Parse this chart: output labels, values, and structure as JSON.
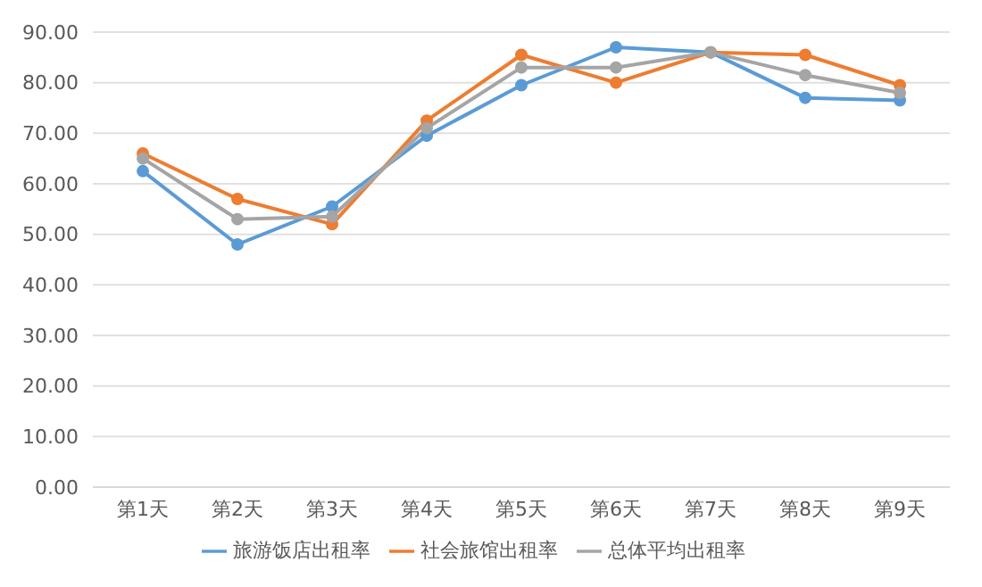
{
  "chart_data": {
    "type": "line",
    "categories": [
      "第1天",
      "第2天",
      "第3天",
      "第4天",
      "第5天",
      "第6天",
      "第7天",
      "第8天",
      "第9天"
    ],
    "series": [
      {
        "name": "旅游饭店出租率",
        "color": "#5b9bd5",
        "values": [
          62.5,
          48,
          55.5,
          69.5,
          79.5,
          87,
          86,
          77,
          76.5
        ]
      },
      {
        "name": "社会旅馆出租率",
        "color": "#ed7d31",
        "values": [
          66,
          57,
          52,
          72.5,
          85.5,
          80,
          86,
          85.5,
          79.5
        ]
      },
      {
        "name": "总体平均出租率",
        "color": "#a5a5a5",
        "values": [
          65,
          53,
          53.5,
          71,
          83,
          83,
          86,
          81.5,
          78
        ]
      }
    ],
    "ylim": [
      0,
      90
    ],
    "yticks": [
      {
        "value": 0,
        "label": "0.00"
      },
      {
        "value": 10,
        "label": "10.00"
      },
      {
        "value": 20,
        "label": "20.00"
      },
      {
        "value": 30,
        "label": "30.00"
      },
      {
        "value": 40,
        "label": "40.00"
      },
      {
        "value": 50,
        "label": "50.00"
      },
      {
        "value": 60,
        "label": "60.00"
      },
      {
        "value": 70,
        "label": "70.00"
      },
      {
        "value": 80,
        "label": "80.00"
      },
      {
        "value": 90,
        "label": "90.00"
      }
    ],
    "grid": "y",
    "legend": "bottom",
    "marker": "circle",
    "line_style": "solid"
  }
}
